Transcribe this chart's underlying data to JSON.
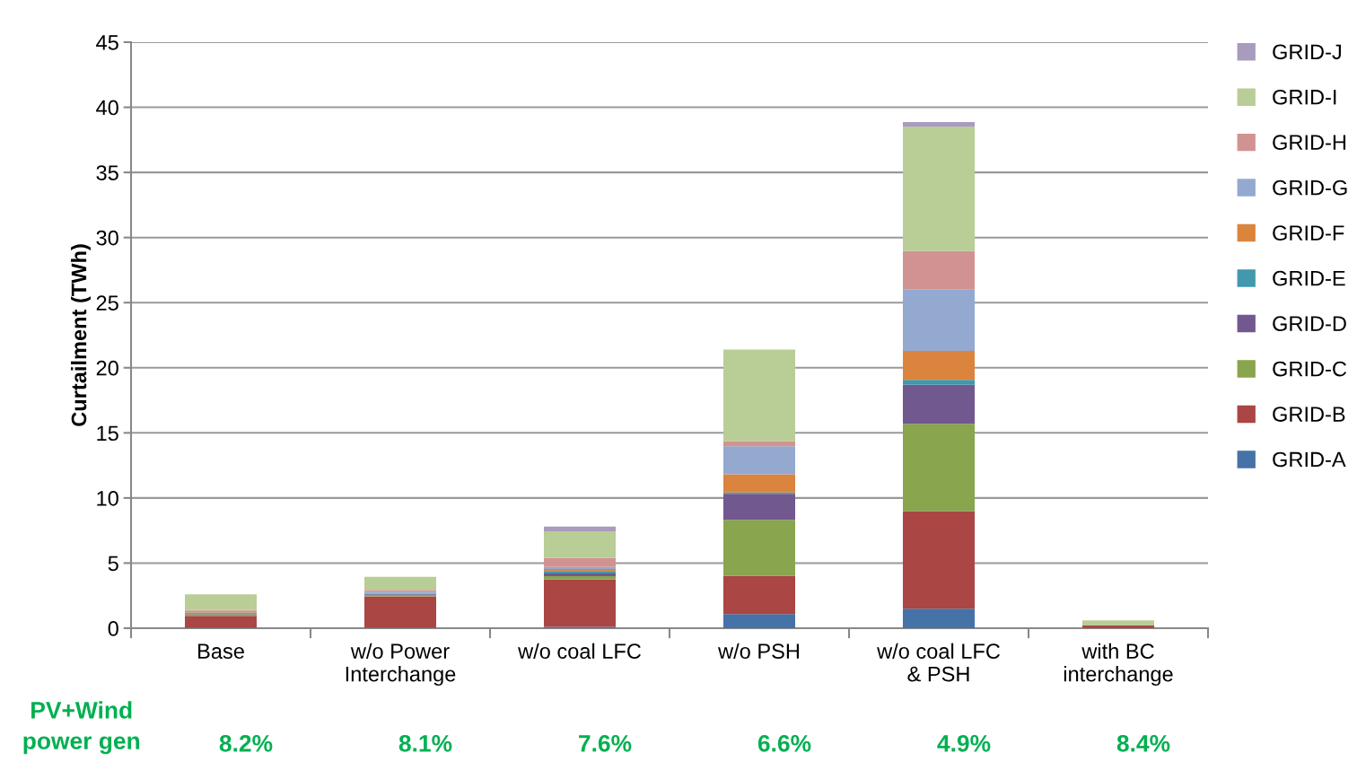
{
  "chart_data": {
    "type": "bar",
    "stacked": true,
    "ylabel": "Curtailment (TWh)",
    "categories": [
      "Base",
      "w/o Power\nInterchange",
      "w/o coal LFC",
      "w/o PSH",
      "w/o coal LFC\n& PSH",
      "with BC\ninterchange"
    ],
    "series": [
      {
        "name": "GRID-A",
        "color": "#4572a7",
        "values": [
          0.05,
          0.05,
          0.1,
          1.08,
          1.5,
          null
        ]
      },
      {
        "name": "GRID-B",
        "color": "#aa4643",
        "values": [
          0.9,
          2.4,
          3.65,
          2.94,
          7.5,
          0.2
        ]
      },
      {
        "name": "GRID-C",
        "color": "#89a54e",
        "values": [
          0.12,
          0.1,
          0.25,
          4.3,
          6.7,
          null
        ]
      },
      {
        "name": "GRID-D",
        "color": "#71588f",
        "values": [
          0.05,
          0.05,
          0.2,
          2.0,
          3.0,
          null
        ]
      },
      {
        "name": "GRID-E",
        "color": "#4198af",
        "values": [
          0.05,
          0.05,
          0.2,
          0.11,
          0.37,
          null
        ]
      },
      {
        "name": "GRID-F",
        "color": "#db843d",
        "values": [
          0.05,
          0.05,
          0.15,
          1.38,
          2.23,
          null
        ]
      },
      {
        "name": "GRID-G",
        "color": "#93a9cf",
        "values": [
          0.1,
          0.15,
          0.15,
          2.17,
          4.7,
          null
        ]
      },
      {
        "name": "GRID-H",
        "color": "#d19392",
        "values": [
          0.08,
          0.1,
          0.7,
          0.39,
          2.96,
          null
        ]
      },
      {
        "name": "GRID-I",
        "color": "#b9cd96",
        "values": [
          1.2,
          1.0,
          2.05,
          7.03,
          9.54,
          0.4
        ]
      },
      {
        "name": "GRID-J",
        "color": "#a99bbd",
        "values": [
          null,
          null,
          0.35,
          null,
          0.36,
          null
        ]
      }
    ],
    "ylim": [
      0,
      45
    ],
    "yticks": [
      0,
      5,
      10,
      15,
      20,
      25,
      30,
      35,
      40,
      45
    ],
    "grid": "y",
    "legend": "right",
    "annotations": [
      "PV+Wind\npower gen",
      "8.2%",
      "8.1%",
      "7.6%",
      "6.6%",
      "4.9%",
      "8.4%"
    ]
  }
}
